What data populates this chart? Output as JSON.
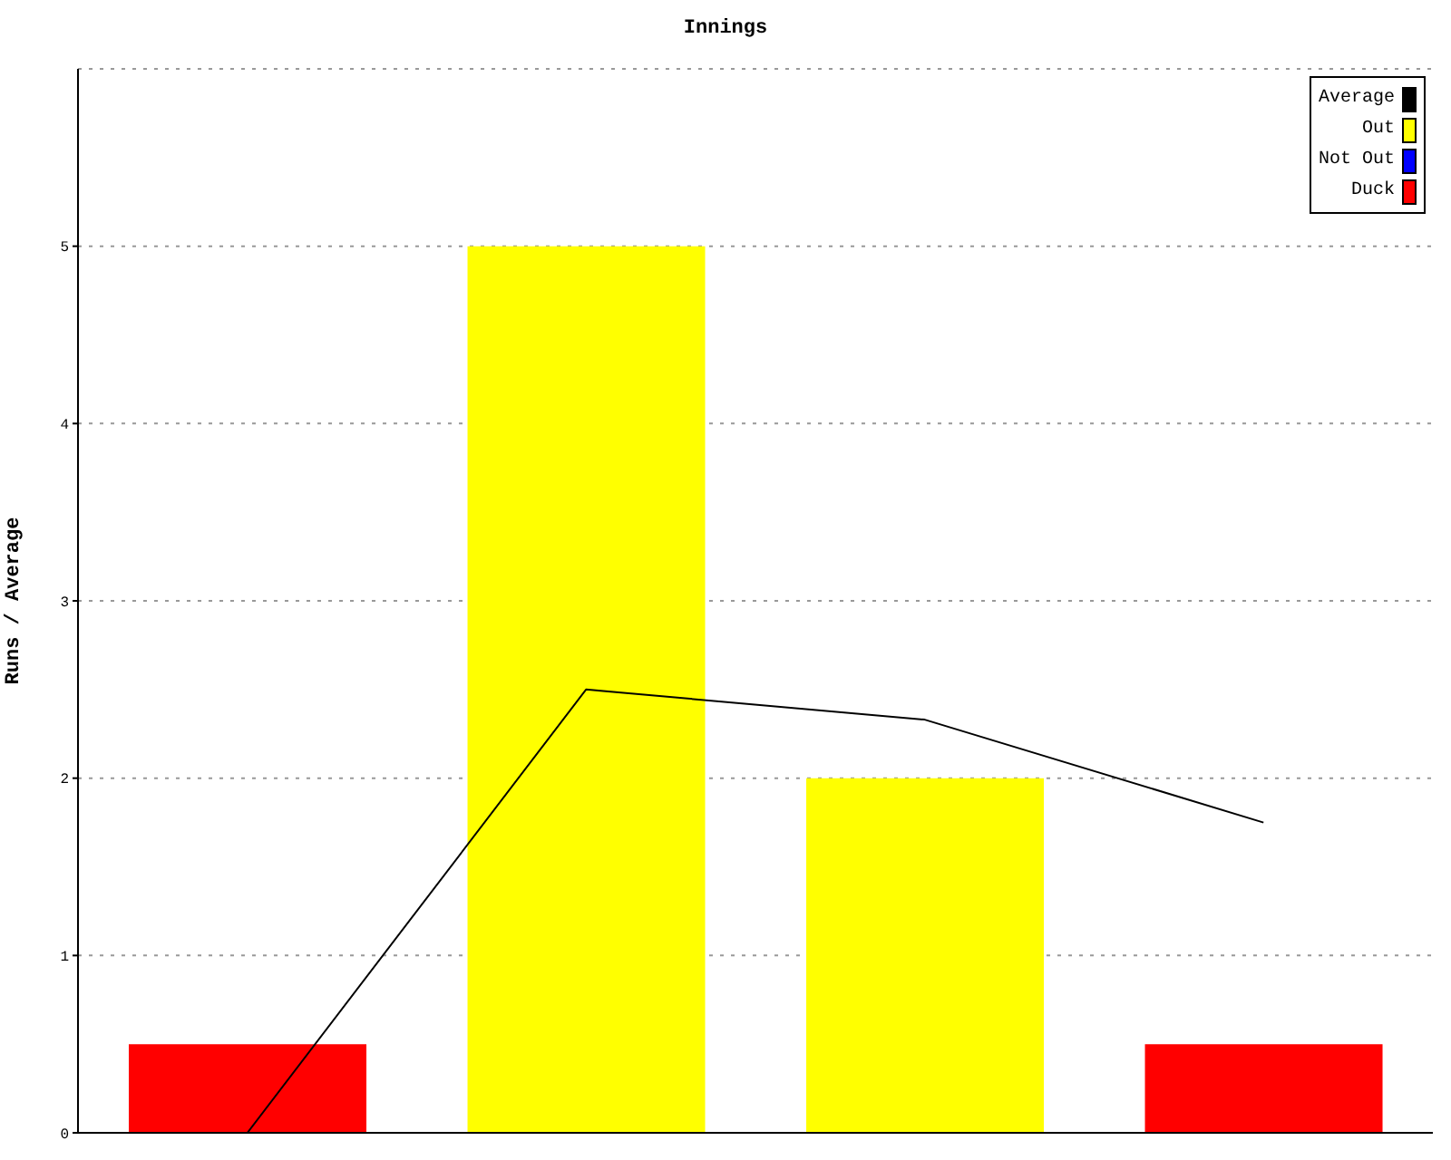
{
  "chart_data": {
    "type": "bar",
    "title": "Innings",
    "ylabel": "Runs / Average",
    "categories": [
      null,
      null,
      null,
      null
    ],
    "stacked": true,
    "series": [
      {
        "name": "Average",
        "type": "line",
        "color": "#000000",
        "values": [
          0,
          2.5,
          2.33,
          1.75
        ]
      },
      {
        "name": "Out",
        "color": "#ffff00",
        "values": [
          null,
          5,
          2,
          null
        ]
      },
      {
        "name": "Not Out",
        "color": "#0000ff",
        "values": [
          null,
          null,
          null,
          null
        ]
      },
      {
        "name": "Duck",
        "color": "#ff0000",
        "values": [
          0.5,
          null,
          null,
          0.5
        ]
      }
    ],
    "ylim": [
      0,
      6
    ],
    "yticks": [
      0,
      1,
      2,
      3,
      4,
      5
    ],
    "grid": "y",
    "legend": "top right",
    "marker": "none",
    "line_style": "solid"
  }
}
